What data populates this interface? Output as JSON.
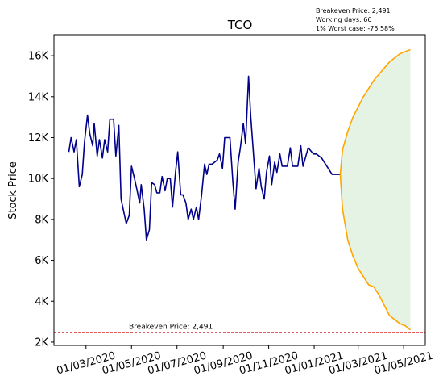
{
  "chart_data": {
    "type": "line",
    "title": "TCO",
    "ylabel": "Stock Price",
    "annotations": [
      "Breakeven Price: 2,491",
      "Working days: 66",
      "1% Worst case: -75.58%"
    ],
    "breakeven": {
      "value": 2491,
      "label": "Breakeven Price: 2,491",
      "color": "#d62728"
    },
    "fill_between": {
      "series": [
        1,
        2
      ],
      "color": "#2ca02c",
      "opacity": 0.12
    },
    "xlim": [
      "2020-01-18",
      "2021-05-30"
    ],
    "xticks": [
      {
        "value": "2020-03-01",
        "label": "01/03/2020"
      },
      {
        "value": "2020-05-01",
        "label": "01/05/2020"
      },
      {
        "value": "2020-07-01",
        "label": "01/07/2020"
      },
      {
        "value": "2020-09-01",
        "label": "01/09/2020"
      },
      {
        "value": "2020-11-01",
        "label": "01/11/2020"
      },
      {
        "value": "2021-01-01",
        "label": "01/01/2021"
      },
      {
        "value": "2021-03-01",
        "label": "01/03/2021"
      },
      {
        "value": "2021-05-01",
        "label": "01/05/2021"
      }
    ],
    "ylim": [
      1840,
      17030
    ],
    "yticks": [
      {
        "value": 2000,
        "label": "2K"
      },
      {
        "value": 4000,
        "label": "4K"
      },
      {
        "value": 6000,
        "label": "6K"
      },
      {
        "value": 8000,
        "label": "8K"
      },
      {
        "value": 10000,
        "label": "10K"
      },
      {
        "value": 12000,
        "label": "12K"
      },
      {
        "value": 14000,
        "label": "14K"
      },
      {
        "value": 16000,
        "label": "16K"
      }
    ],
    "series": [
      {
        "color": "#00008b",
        "x": [
          "2020-02-07",
          "2020-02-10",
          "2020-02-14",
          "2020-02-17",
          "2020-02-21",
          "2020-02-25",
          "2020-02-28",
          "2020-03-03",
          "2020-03-06",
          "2020-03-10",
          "2020-03-12",
          "2020-03-16",
          "2020-03-19",
          "2020-03-23",
          "2020-03-26",
          "2020-03-30",
          "2020-04-02",
          "2020-04-07",
          "2020-04-10",
          "2020-04-14",
          "2020-04-17",
          "2020-04-21",
          "2020-04-24",
          "2020-04-28",
          "2020-05-01",
          "2020-05-05",
          "2020-05-08",
          "2020-05-12",
          "2020-05-14",
          "2020-05-18",
          "2020-05-21",
          "2020-05-25",
          "2020-05-28",
          "2020-06-01",
          "2020-06-04",
          "2020-06-08",
          "2020-06-11",
          "2020-06-15",
          "2020-06-18",
          "2020-06-22",
          "2020-06-25",
          "2020-06-29",
          "2020-07-02",
          "2020-07-06",
          "2020-07-09",
          "2020-07-13",
          "2020-07-16",
          "2020-07-20",
          "2020-07-23",
          "2020-07-27",
          "2020-07-30",
          "2020-08-03",
          "2020-08-07",
          "2020-08-10",
          "2020-08-13",
          "2020-08-17",
          "2020-08-24",
          "2020-08-27",
          "2020-08-31",
          "2020-09-03",
          "2020-09-10",
          "2020-09-14",
          "2020-09-17",
          "2020-09-21",
          "2020-09-24",
          "2020-09-28",
          "2020-10-01",
          "2020-10-05",
          "2020-10-08",
          "2020-10-12",
          "2020-10-15",
          "2020-10-19",
          "2020-10-22",
          "2020-10-26",
          "2020-10-29",
          "2020-11-02",
          "2020-11-05",
          "2020-11-09",
          "2020-11-12",
          "2020-11-16",
          "2020-11-19",
          "2020-11-26",
          "2020-11-30",
          "2020-12-03",
          "2020-12-10",
          "2020-12-14",
          "2020-12-17",
          "2020-12-24",
          "2020-12-31",
          "2021-01-04",
          "2021-01-11",
          "2021-01-18",
          "2021-01-25",
          "2021-02-05"
        ],
        "values": [
          11300,
          12000,
          11300,
          11900,
          9600,
          10200,
          11800,
          13100,
          12200,
          11600,
          12700,
          11100,
          11900,
          11000,
          11900,
          11300,
          12900,
          12900,
          11100,
          12600,
          9000,
          8300,
          7800,
          8200,
          10600,
          10000,
          9500,
          8800,
          9700,
          8500,
          7000,
          7500,
          9800,
          9700,
          9300,
          9300,
          10100,
          9400,
          10000,
          10000,
          8600,
          10300,
          11300,
          9200,
          9200,
          8800,
          8000,
          8500,
          8000,
          8600,
          8000,
          9200,
          10700,
          10200,
          10700,
          10700,
          10900,
          11200,
          10500,
          12000,
          12000,
          9800,
          8500,
          10800,
          11500,
          12700,
          11700,
          15000,
          13000,
          11000,
          9500,
          10500,
          9600,
          9000,
          10300,
          11100,
          9700,
          10800,
          10300,
          11200,
          10600,
          10600,
          11500,
          10600,
          10600,
          11600,
          10600,
          11500,
          11200,
          11200,
          11000,
          10600,
          10200,
          10200
        ]
      },
      {
        "color": "#ffa500",
        "x": [
          "2021-02-05",
          "2021-02-08",
          "2021-02-15",
          "2021-02-22",
          "2021-03-01",
          "2021-03-08",
          "2021-03-15",
          "2021-03-22",
          "2021-03-29",
          "2021-04-05",
          "2021-04-12",
          "2021-04-19",
          "2021-04-26",
          "2021-05-03",
          "2021-05-10"
        ],
        "values": [
          10200,
          11400,
          12300,
          13000,
          13500,
          14000,
          14400,
          14800,
          15100,
          15400,
          15700,
          15900,
          16100,
          16200,
          16300
        ]
      },
      {
        "color": "#ffa500",
        "x": [
          "2021-02-05",
          "2021-02-08",
          "2021-02-15",
          "2021-02-22",
          "2021-03-01",
          "2021-03-08",
          "2021-03-15",
          "2021-03-22",
          "2021-03-29",
          "2021-04-05",
          "2021-04-12",
          "2021-04-19",
          "2021-04-26",
          "2021-05-03",
          "2021-05-10"
        ],
        "values": [
          10200,
          8500,
          7000,
          6200,
          5600,
          5200,
          4800,
          4700,
          4300,
          3800,
          3300,
          3100,
          2900,
          2800,
          2600
        ]
      }
    ]
  }
}
